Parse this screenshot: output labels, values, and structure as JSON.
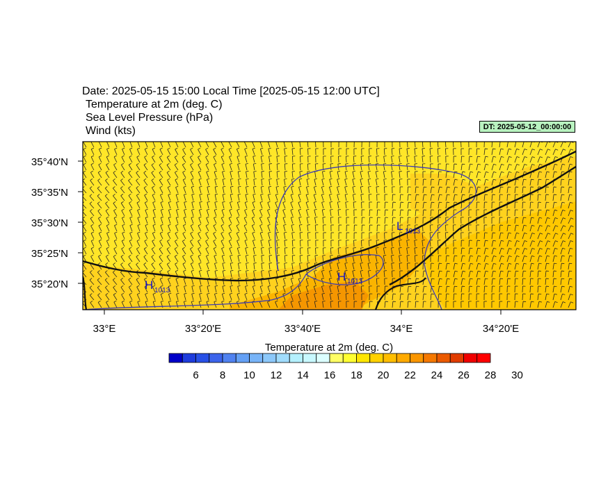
{
  "header": {
    "line1": "Date: 2025-05-15  15:00 Local Time [2025-05-15  12:00 UTC]",
    "line2": "Temperature at 2m   (deg. C)",
    "line3": "Sea Level Pressure   (hPa)",
    "line4": "Wind   (kts)"
  },
  "dt_badge": "DT: 2025-05-12_00:00:00",
  "lat_labels": [
    "35°40'N",
    "35°35'N",
    "35°30'N",
    "35°25'N",
    "35°20'N"
  ],
  "lon_labels": [
    "33°E",
    "33°20'E",
    "33°40'E",
    "34°E",
    "34°20'E"
  ],
  "pressure_labels": [
    {
      "type": "H",
      "value": "1013"
    },
    {
      "type": "H",
      "value": "1013"
    },
    {
      "type": "L",
      "value": "1013"
    }
  ],
  "colorbar": {
    "title": "Temperature at 2m  (deg. C)",
    "tick_labels": [
      "6",
      "8",
      "10",
      "12",
      "14",
      "16",
      "18",
      "20",
      "22",
      "24",
      "26",
      "28",
      "30"
    ],
    "colors": [
      "#0000c8",
      "#1e3cdc",
      "#2850e6",
      "#3c64eb",
      "#5082f0",
      "#64a0f5",
      "#78b4f8",
      "#8cc8fa",
      "#a0dcfc",
      "#b4f0fe",
      "#c8f8ff",
      "#dcffff",
      "#ffff64",
      "#ffff32",
      "#ffe600",
      "#ffd200",
      "#ffbe00",
      "#ffaa00",
      "#fa9600",
      "#f57800",
      "#eb5a00",
      "#e13c00",
      "#f00000",
      "#ff0000"
    ]
  },
  "colors": {
    "land_warm": "#ffd21e",
    "sea_yellow": "#ffe628",
    "hot": "#f58c00",
    "isobar": "#3c3cb4"
  }
}
